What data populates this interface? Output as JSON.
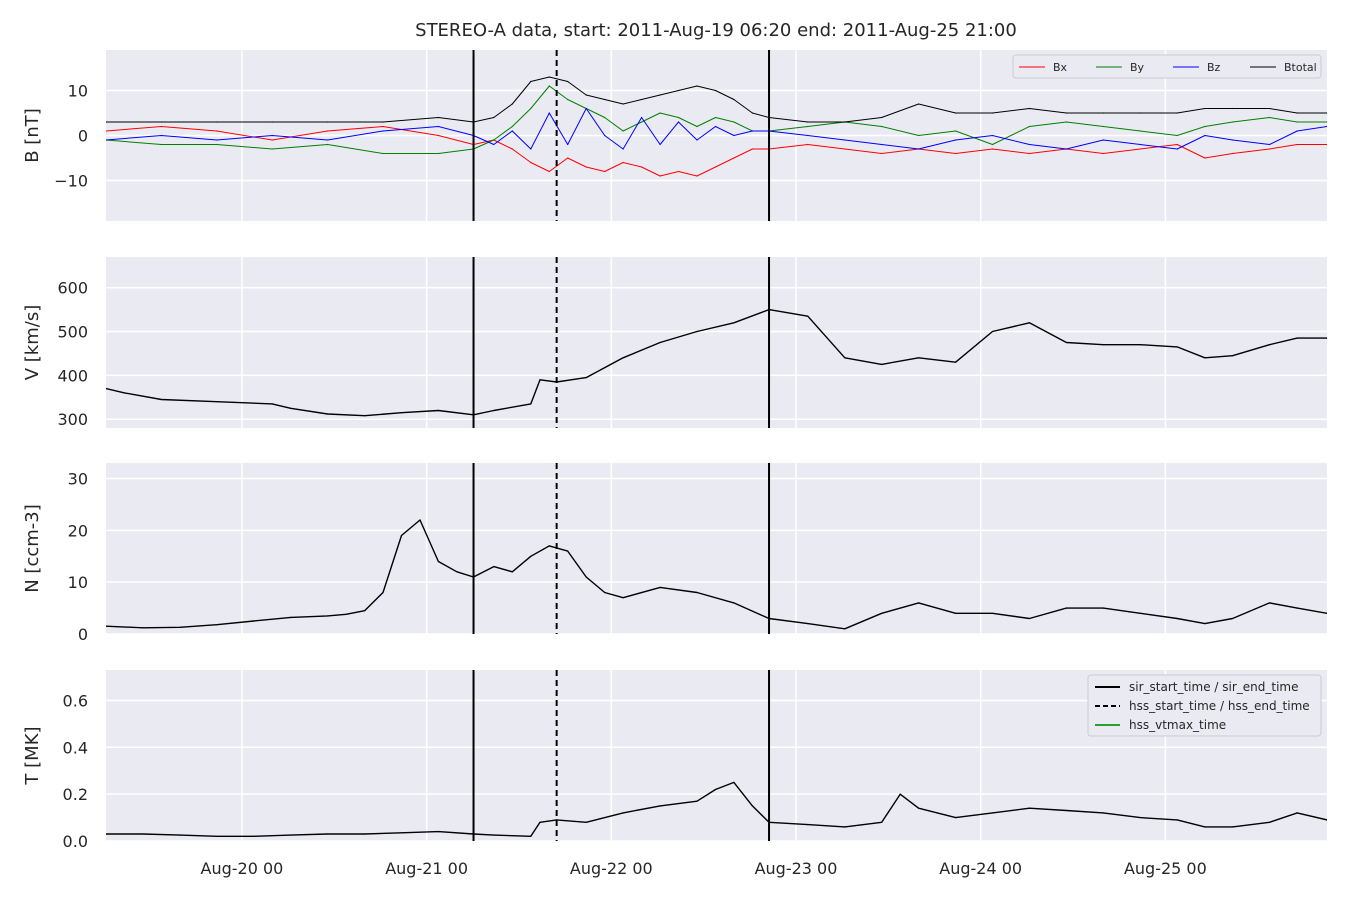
{
  "chart_data": {
    "type": "line",
    "title": "STEREO-A data, start: 2011-Aug-19 06:20  end: 2011-Aug-25 21:00",
    "x_axis": {
      "range_days": [
        0.0,
        6.6111
      ],
      "tick_labels": [
        "Aug-20 00",
        "Aug-21 00",
        "Aug-22 00",
        "Aug-23 00",
        "Aug-24 00",
        "Aug-25 00"
      ],
      "tick_days": [
        0.7361,
        1.7361,
        2.7361,
        3.7361,
        4.7361,
        5.7361
      ]
    },
    "event_lines": {
      "sir_start_time": 1.99,
      "hss_start_time": 2.44,
      "sir_end_time": 3.59
    },
    "panels": [
      {
        "ylabel": "B [nT]",
        "ylim": [
          -19,
          19
        ],
        "yticks": [
          -10,
          0,
          10
        ],
        "ytick_labels": [
          "−10",
          "0",
          "10"
        ],
        "legend_position": "top-right",
        "series": [
          {
            "name": "Bx",
            "color": "#ff0000",
            "x": [
              0,
              0.3,
              0.6,
              0.9,
              1.2,
              1.5,
              1.8,
              1.99,
              2.1,
              2.2,
              2.3,
              2.4,
              2.5,
              2.6,
              2.7,
              2.8,
              2.9,
              3.0,
              3.1,
              3.2,
              3.3,
              3.4,
              3.5,
              3.59,
              3.8,
              4.0,
              4.2,
              4.4,
              4.6,
              4.8,
              5.0,
              5.2,
              5.4,
              5.6,
              5.8,
              5.95,
              6.1,
              6.3,
              6.45,
              6.6111
            ],
            "y": [
              1,
              2,
              1,
              -1,
              1,
              2,
              0,
              -2,
              -1,
              -3,
              -6,
              -8,
              -5,
              -7,
              -8,
              -6,
              -7,
              -9,
              -8,
              -9,
              -7,
              -5,
              -3,
              -3,
              -2,
              -3,
              -4,
              -3,
              -4,
              -3,
              -4,
              -3,
              -4,
              -3,
              -2,
              -5,
              -4,
              -3,
              -2,
              -2
            ]
          },
          {
            "name": "By",
            "color": "#008000",
            "x": [
              0,
              0.3,
              0.6,
              0.9,
              1.2,
              1.5,
              1.8,
              1.99,
              2.1,
              2.2,
              2.3,
              2.4,
              2.5,
              2.6,
              2.7,
              2.8,
              2.9,
              3.0,
              3.1,
              3.2,
              3.3,
              3.4,
              3.5,
              3.59,
              3.8,
              4.0,
              4.2,
              4.4,
              4.6,
              4.8,
              5.0,
              5.2,
              5.4,
              5.6,
              5.8,
              5.95,
              6.1,
              6.3,
              6.45,
              6.6111
            ],
            "y": [
              -1,
              -2,
              -2,
              -3,
              -2,
              -4,
              -4,
              -3,
              -1,
              2,
              6,
              11,
              8,
              6,
              4,
              1,
              3,
              5,
              4,
              2,
              4,
              3,
              1,
              1,
              2,
              3,
              2,
              0,
              1,
              -2,
              2,
              3,
              2,
              1,
              0,
              2,
              3,
              4,
              3,
              3
            ]
          },
          {
            "name": "Bz",
            "color": "#0000ff",
            "x": [
              0,
              0.3,
              0.6,
              0.9,
              1.2,
              1.5,
              1.8,
              1.99,
              2.1,
              2.2,
              2.3,
              2.4,
              2.5,
              2.6,
              2.7,
              2.8,
              2.9,
              3.0,
              3.1,
              3.2,
              3.3,
              3.4,
              3.5,
              3.59,
              3.8,
              4.0,
              4.2,
              4.4,
              4.6,
              4.8,
              5.0,
              5.2,
              5.4,
              5.6,
              5.8,
              5.95,
              6.1,
              6.3,
              6.45,
              6.6111
            ],
            "y": [
              -1,
              0,
              -1,
              0,
              -1,
              1,
              2,
              0,
              -2,
              1,
              -3,
              5,
              -2,
              6,
              0,
              -3,
              4,
              -2,
              3,
              -1,
              2,
              0,
              1,
              1,
              0,
              -1,
              -2,
              -3,
              -1,
              0,
              -2,
              -3,
              -1,
              -2,
              -3,
              0,
              -1,
              -2,
              1,
              2
            ]
          },
          {
            "name": "Btotal",
            "color": "#000000",
            "x": [
              0,
              0.3,
              0.6,
              0.9,
              1.2,
              1.5,
              1.8,
              1.99,
              2.1,
              2.2,
              2.3,
              2.4,
              2.5,
              2.6,
              2.7,
              2.8,
              2.9,
              3.0,
              3.1,
              3.2,
              3.3,
              3.4,
              3.5,
              3.59,
              3.8,
              4.0,
              4.2,
              4.4,
              4.6,
              4.8,
              5.0,
              5.2,
              5.4,
              5.6,
              5.8,
              5.95,
              6.1,
              6.3,
              6.45,
              6.6111
            ],
            "y": [
              3,
              3,
              3,
              3,
              3,
              3,
              4,
              3,
              4,
              7,
              12,
              13,
              12,
              9,
              8,
              7,
              8,
              9,
              10,
              11,
              10,
              8,
              5,
              4,
              3,
              3,
              4,
              7,
              5,
              5,
              6,
              5,
              5,
              5,
              5,
              6,
              6,
              6,
              5,
              5
            ]
          }
        ]
      },
      {
        "ylabel": "V [km/s]",
        "ylim": [
          280,
          670
        ],
        "yticks": [
          300,
          400,
          500,
          600
        ],
        "ytick_labels": [
          "300",
          "400",
          "500",
          "600"
        ],
        "series": [
          {
            "name": "",
            "color": "#000000",
            "x": [
              0,
              0.1,
              0.3,
              0.6,
              0.9,
              1.0,
              1.2,
              1.4,
              1.6,
              1.8,
              1.99,
              2.1,
              2.3,
              2.35,
              2.44,
              2.6,
              2.8,
              3.0,
              3.2,
              3.4,
              3.59,
              3.8,
              4.0,
              4.2,
              4.4,
              4.6,
              4.8,
              5.0,
              5.2,
              5.4,
              5.6,
              5.8,
              5.95,
              6.1,
              6.3,
              6.45,
              6.6111
            ],
            "y": [
              370,
              360,
              345,
              340,
              335,
              325,
              312,
              308,
              315,
              320,
              310,
              320,
              335,
              390,
              385,
              395,
              440,
              475,
              500,
              520,
              550,
              535,
              440,
              425,
              440,
              430,
              500,
              520,
              475,
              470,
              470,
              465,
              440,
              445,
              470,
              485,
              485
            ]
          }
        ]
      },
      {
        "ylabel": "N [ccm-3]",
        "ylim": [
          0,
          33
        ],
        "yticks": [
          0,
          10,
          20,
          30
        ],
        "ytick_labels": [
          "0",
          "10",
          "20",
          "30"
        ],
        "series": [
          {
            "name": "",
            "color": "#000000",
            "x": [
              0,
              0.2,
              0.4,
              0.6,
              0.8,
              1.0,
              1.2,
              1.3,
              1.4,
              1.5,
              1.6,
              1.7,
              1.8,
              1.9,
              1.99,
              2.1,
              2.2,
              2.3,
              2.4,
              2.5,
              2.6,
              2.7,
              2.8,
              3.0,
              3.2,
              3.4,
              3.59,
              3.8,
              4.0,
              4.2,
              4.4,
              4.6,
              4.8,
              5.0,
              5.2,
              5.4,
              5.6,
              5.8,
              5.95,
              6.1,
              6.3,
              6.45,
              6.6111
            ],
            "y": [
              1.5,
              1.2,
              1.3,
              1.8,
              2.5,
              3.2,
              3.5,
              3.8,
              4.5,
              8,
              19,
              22,
              14,
              12,
              11,
              13,
              12,
              15,
              17,
              16,
              11,
              8,
              7,
              9,
              8,
              6,
              3,
              2,
              1,
              4,
              6,
              4,
              4,
              3,
              5,
              5,
              4,
              3,
              2,
              3,
              6,
              5,
              4
            ]
          }
        ]
      },
      {
        "ylabel": "T [MK]",
        "ylim": [
          0,
          0.73
        ],
        "yticks": [
          0.0,
          0.2,
          0.4,
          0.6
        ],
        "ytick_labels": [
          "0.0",
          "0.2",
          "0.4",
          "0.6"
        ],
        "legend_position": "top-right",
        "legend_entries": [
          {
            "label": "sir_start_time / sir_end_time",
            "style": "solid",
            "color": "#000000"
          },
          {
            "label": "hss_start_time / hss_end_time",
            "style": "dashed",
            "color": "#000000"
          },
          {
            "label": "hss_vtmax_time",
            "style": "solid",
            "color": "#2ca02c"
          }
        ],
        "series": [
          {
            "name": "",
            "color": "#000000",
            "x": [
              0,
              0.2,
              0.4,
              0.6,
              0.8,
              1.0,
              1.2,
              1.4,
              1.6,
              1.8,
              1.99,
              2.1,
              2.3,
              2.35,
              2.44,
              2.6,
              2.8,
              3.0,
              3.2,
              3.3,
              3.4,
              3.5,
              3.59,
              3.8,
              4.0,
              4.2,
              4.3,
              4.4,
              4.6,
              4.8,
              5.0,
              5.2,
              5.4,
              5.6,
              5.8,
              5.95,
              6.1,
              6.3,
              6.45,
              6.6111
            ],
            "y": [
              0.03,
              0.03,
              0.025,
              0.02,
              0.02,
              0.025,
              0.03,
              0.03,
              0.035,
              0.04,
              0.03,
              0.025,
              0.02,
              0.08,
              0.09,
              0.08,
              0.12,
              0.15,
              0.17,
              0.22,
              0.25,
              0.15,
              0.08,
              0.07,
              0.06,
              0.08,
              0.2,
              0.14,
              0.1,
              0.12,
              0.14,
              0.13,
              0.12,
              0.1,
              0.09,
              0.06,
              0.06,
              0.08,
              0.12,
              0.09
            ]
          }
        ]
      }
    ],
    "grid": true,
    "x_axis_shared": true
  }
}
